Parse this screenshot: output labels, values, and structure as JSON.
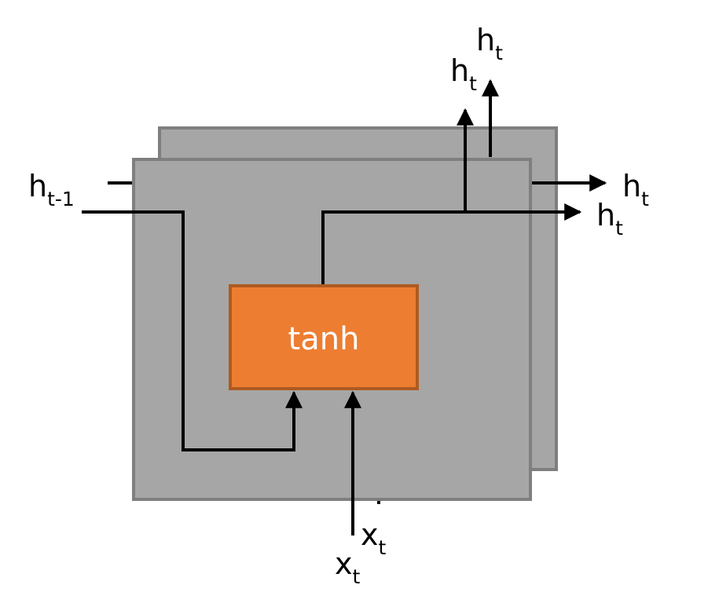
{
  "colors": {
    "cell_fill": "#a6a6a6",
    "cell_stroke": "#7f7f7f",
    "gate_fill": "#ed7d31",
    "gate_stroke": "#ae5a21",
    "gate_text": "#ffffff",
    "wire": "#000000"
  },
  "gate": {
    "label": "tanh"
  },
  "labels": {
    "h_prev": {
      "main": "h",
      "sub": "t-1"
    },
    "h_out_right_back": {
      "main": "h",
      "sub": "t"
    },
    "h_out_right_front": {
      "main": "h",
      "sub": "t"
    },
    "h_out_up_back": {
      "main": "h",
      "sub": "t"
    },
    "h_out_up_front": {
      "main": "h",
      "sub": "t"
    },
    "x_in_back": {
      "main": "x",
      "sub": "t"
    },
    "x_in_front": {
      "main": "x",
      "sub": "t"
    }
  }
}
